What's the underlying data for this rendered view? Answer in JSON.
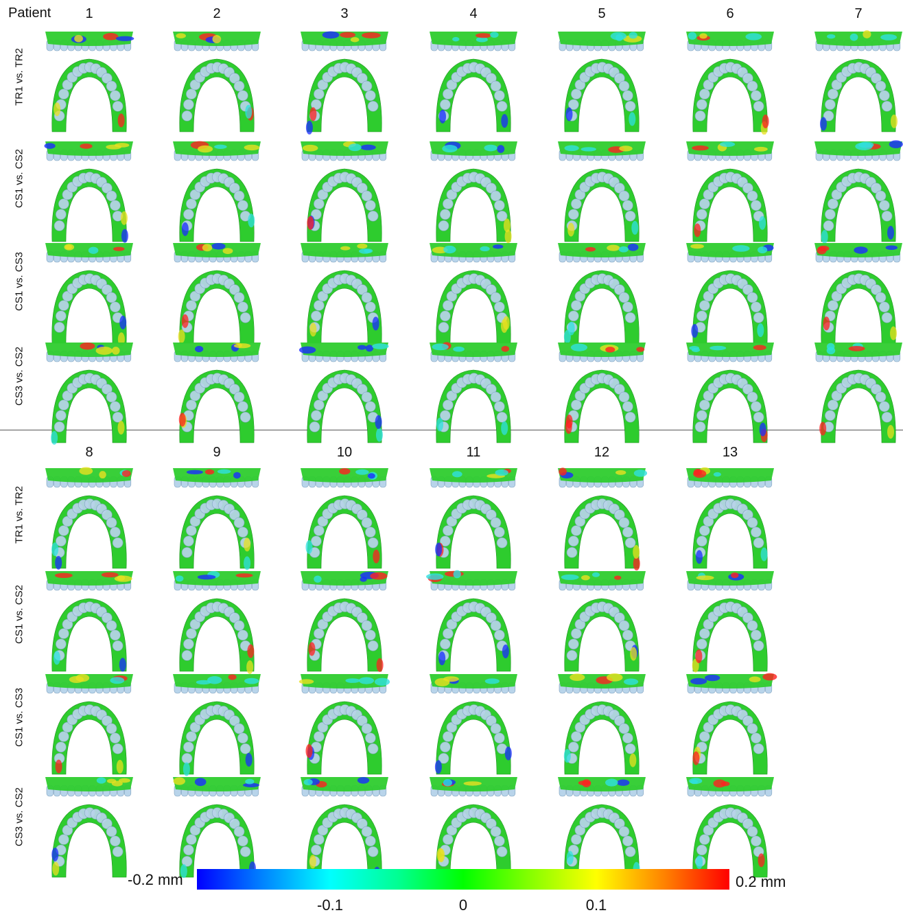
{
  "header": {
    "patient_label": "Patient"
  },
  "patients_top": [
    "1",
    "2",
    "3",
    "4",
    "5",
    "6",
    "7"
  ],
  "patients_bottom": [
    "8",
    "9",
    "10",
    "11",
    "12",
    "13"
  ],
  "row_labels": [
    "TR1 vs. TR2",
    "CS1 vs. CS2",
    "CS1 vs. CS3",
    "CS3 vs. CS2"
  ],
  "colorbar": {
    "min_label": "-0.2 mm",
    "max_label": "0.2 mm",
    "ticks": [
      "-0.1",
      "0",
      "0.1"
    ],
    "colors": [
      "#0000ff",
      "#00ffff",
      "#00ff00",
      "#ffff00",
      "#ff0000"
    ]
  },
  "colors": {
    "tooth": "#b8d4ea",
    "tooth_outline": "#7d9fbd",
    "deviation_green": "#2ecc2e",
    "deviation_red": "#ff2020",
    "deviation_blue": "#1a2cff",
    "deviation_yellow": "#e8e020",
    "deviation_cyan": "#30e0e0"
  }
}
